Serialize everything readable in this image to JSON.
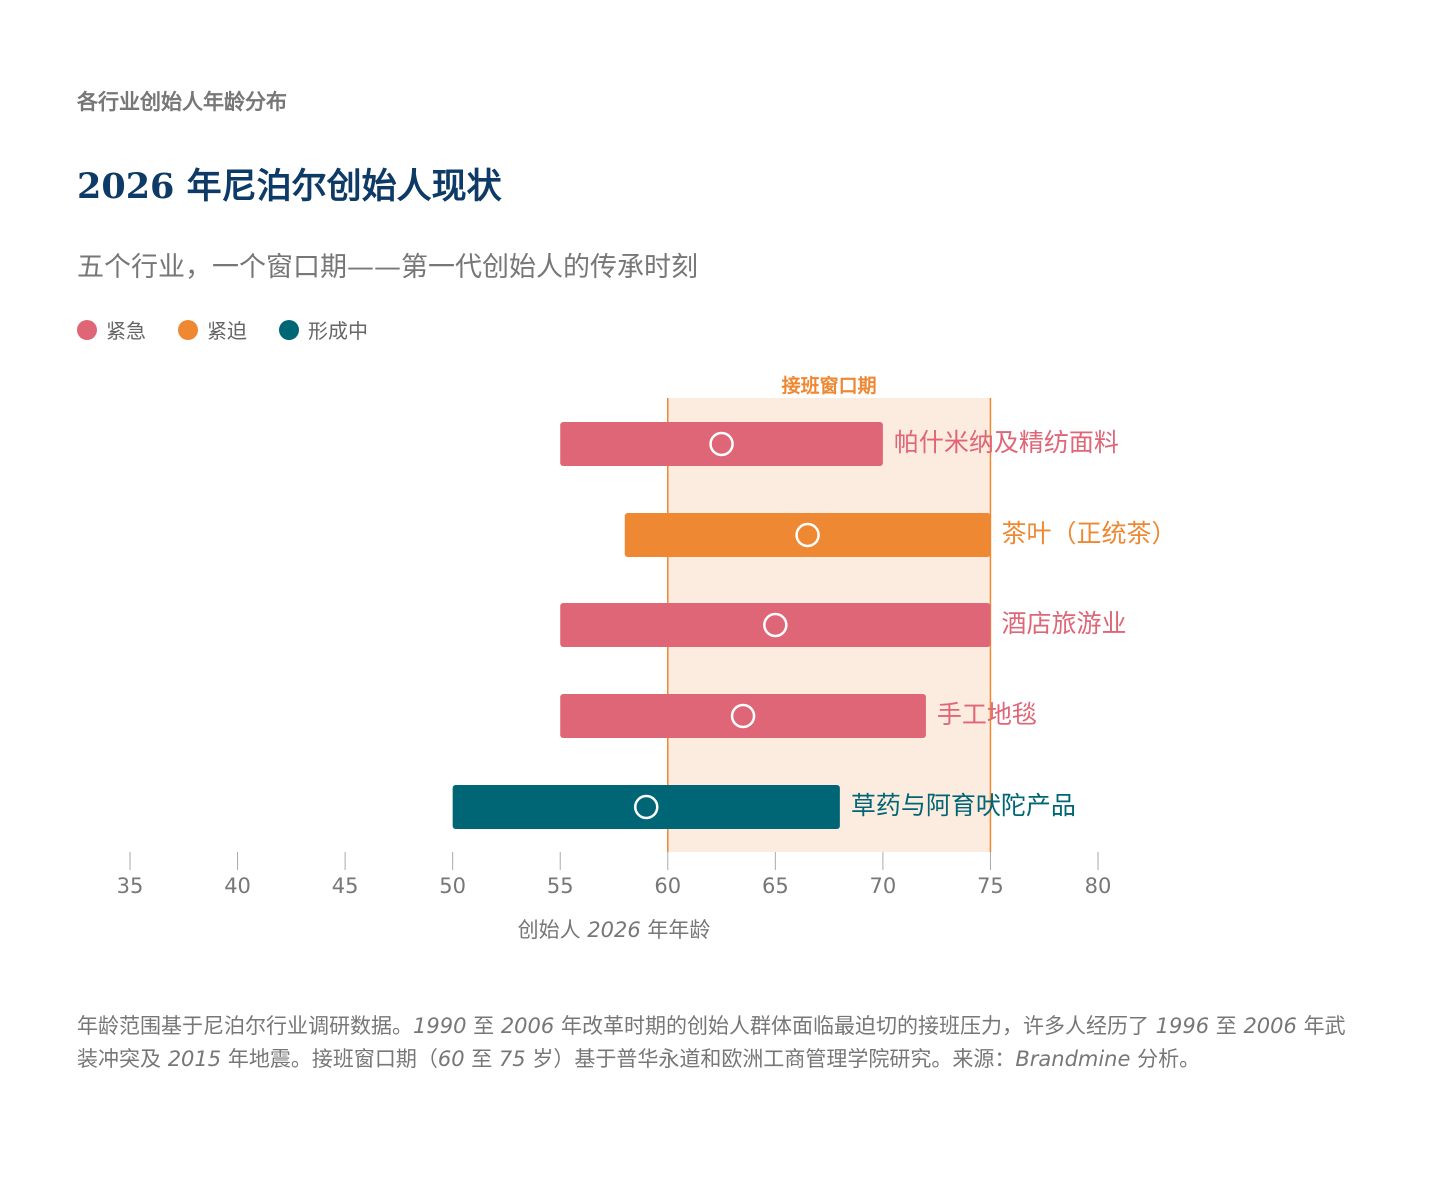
{
  "eyebrow": "各行业创始人年龄分布",
  "title": "2026 年尼泊尔创始人现状",
  "subtitle": "五个行业，一个窗口期——第一代创始人的传承时刻",
  "legend": [
    {
      "label": "紧急",
      "color": "#df6677"
    },
    {
      "label": "紧迫",
      "color": "#ee8833"
    },
    {
      "label": "形成中",
      "color": "#006675"
    }
  ],
  "chart_data": {
    "type": "range-bar",
    "xlabel_parts": [
      "创始人 ",
      "2026",
      " 年年龄"
    ],
    "xlim": [
      35,
      80
    ],
    "xticks": [
      35,
      40,
      45,
      50,
      55,
      60,
      65,
      70,
      75,
      80
    ],
    "window": {
      "label": "接班窗口期",
      "start": 60,
      "end": 75,
      "color": "#ee8833",
      "fill": "#fcebdf"
    },
    "series": [
      {
        "category": "帕什米纳及精纺面料",
        "min": 55,
        "max": 70,
        "marker": 62.5,
        "status": "紧急",
        "color": "#df6677"
      },
      {
        "category": "茶叶（正统茶）",
        "min": 58,
        "max": 75,
        "marker": 66.5,
        "status": "紧迫",
        "color": "#ee8833"
      },
      {
        "category": "酒店旅游业",
        "min": 55,
        "max": 75,
        "marker": 65,
        "status": "紧急",
        "color": "#df6677"
      },
      {
        "category": "手工地毯",
        "min": 55,
        "max": 72,
        "marker": 63.5,
        "status": "紧急",
        "color": "#df6677"
      },
      {
        "category": "草药与阿育吠陀产品",
        "min": 50,
        "max": 68,
        "marker": 59,
        "status": "形成中",
        "color": "#006675"
      }
    ],
    "grid": false
  },
  "footnote": [
    {
      "t": "年龄范围基于尼泊尔行业调研数据。",
      "i": false
    },
    {
      "t": "1990",
      "i": true
    },
    {
      "t": " 至 ",
      "i": false
    },
    {
      "t": "2006",
      "i": true
    },
    {
      "t": " 年改革时期的创始人群体面临最迫切的接班压力，许多人经历了 ",
      "i": false
    },
    {
      "t": "1996",
      "i": true
    },
    {
      "t": " 至 ",
      "i": false
    },
    {
      "t": "2006",
      "i": true
    },
    {
      "t": " 年武装冲突及 ",
      "i": false
    },
    {
      "t": "2015",
      "i": true
    },
    {
      "t": " 年地震。接班窗口期（",
      "i": false
    },
    {
      "t": "60",
      "i": true
    },
    {
      "t": " 至 ",
      "i": false
    },
    {
      "t": "75",
      "i": true
    },
    {
      "t": " 岁）基于普华永道和欧洲工商管理学院研究。来源：",
      "i": false
    },
    {
      "t": "Brandmine",
      "i": true
    },
    {
      "t": " 分析。",
      "i": false
    }
  ]
}
